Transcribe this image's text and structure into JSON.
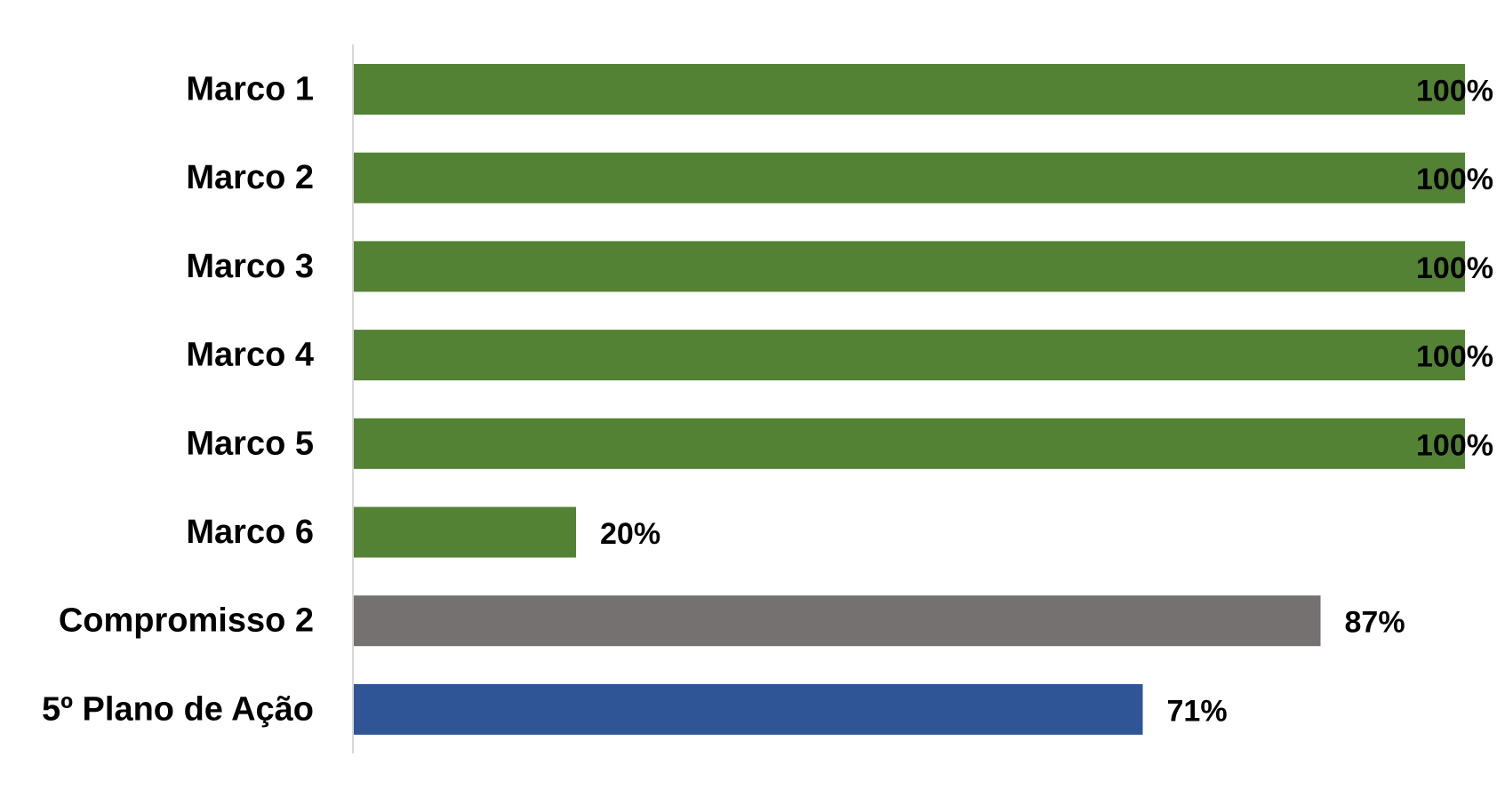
{
  "chart_data": {
    "type": "bar",
    "orientation": "horizontal",
    "categories": [
      "Marco 1",
      "Marco 2",
      "Marco 3",
      "Marco 4",
      "Marco 5",
      "Marco 6",
      "Compromisso 2",
      "5º Plano de Ação"
    ],
    "values": [
      100,
      100,
      100,
      100,
      100,
      20,
      87,
      71
    ],
    "data_labels": [
      "100%",
      "100%",
      "100%",
      "100%",
      "100%",
      "20%",
      "87%",
      "71%"
    ],
    "bar_colors": [
      "#548235",
      "#548235",
      "#548235",
      "#548235",
      "#548235",
      "#548235",
      "#767171",
      "#2F5597"
    ],
    "xlim": [
      0,
      100
    ],
    "grid": false,
    "legend": "none",
    "title": "",
    "xlabel": "",
    "ylabel": ""
  }
}
